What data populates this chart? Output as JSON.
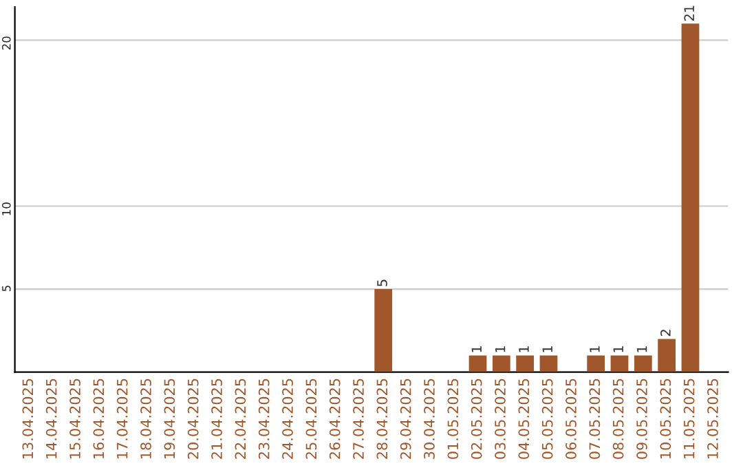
{
  "chart_data": {
    "type": "bar",
    "categories": [
      "13.04.2025",
      "14.04.2025",
      "15.04.2025",
      "16.04.2025",
      "17.04.2025",
      "18.04.2025",
      "19.04.2025",
      "20.04.2025",
      "21.04.2025",
      "22.04.2025",
      "23.04.2025",
      "24.04.2025",
      "25.04.2025",
      "26.04.2025",
      "27.04.2025",
      "28.04.2025",
      "29.04.2025",
      "30.04.2025",
      "01.05.2025",
      "02.05.2025",
      "03.05.2025",
      "04.05.2025",
      "05.05.2025",
      "06.05.2025",
      "07.05.2025",
      "08.05.2025",
      "09.05.2025",
      "10.05.2025",
      "11.05.2025",
      "12.05.2025"
    ],
    "values": [
      0,
      0,
      0,
      0,
      0,
      0,
      0,
      0,
      0,
      0,
      0,
      0,
      0,
      0,
      0,
      5,
      0,
      0,
      0,
      1,
      1,
      1,
      1,
      0,
      1,
      1,
      1,
      2,
      21,
      0
    ],
    "value_labels": [
      null,
      null,
      null,
      null,
      null,
      null,
      null,
      null,
      null,
      null,
      null,
      null,
      null,
      null,
      null,
      "5",
      null,
      null,
      null,
      "1",
      "1",
      "1",
      "1",
      null,
      "1",
      "1",
      "1",
      "2",
      "21",
      null
    ],
    "color": "#a0572b",
    "ylim": [
      0,
      22
    ],
    "yticks": [
      5,
      10,
      20
    ],
    "grid": "y"
  }
}
